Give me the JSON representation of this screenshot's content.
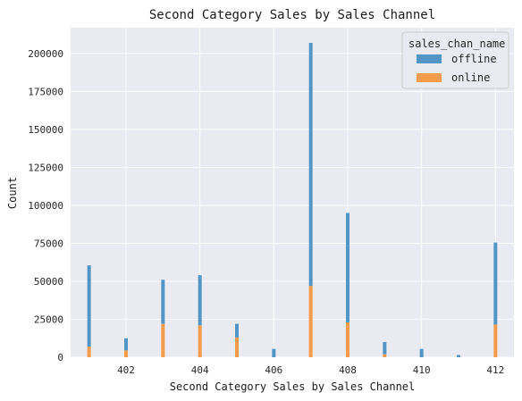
{
  "chart_data": {
    "type": "bar",
    "stacked": true,
    "title": "Second Category Sales by Sales Channel",
    "xlabel": "Second Category Sales by Sales Channel",
    "ylabel": "Count",
    "x": [
      401,
      402,
      403,
      404,
      405,
      406,
      407,
      408,
      409,
      410,
      411,
      412
    ],
    "series": [
      {
        "name": "online",
        "values": [
          7000,
          4500,
          22000,
          21000,
          13000,
          0,
          47000,
          23000,
          2000,
          0,
          0,
          21500
        ]
      },
      {
        "name": "offline",
        "values": [
          53500,
          8000,
          29000,
          33000,
          9000,
          5500,
          160000,
          72000,
          8000,
          5500,
          1500,
          54000
        ]
      }
    ],
    "colors": {
      "offline": "#5196c7",
      "online": "#f59c4c",
      "plot_bg": "#eaeaf2",
      "grid": "#ffffff"
    },
    "xlim": [
      400.5,
      412.5
    ],
    "ylim": [
      0,
      217000
    ],
    "x_ticks": [
      402,
      404,
      406,
      408,
      410,
      412
    ],
    "y_ticks": [
      0,
      25000,
      50000,
      75000,
      100000,
      125000,
      150000,
      175000,
      200000
    ],
    "grid": true,
    "legend": {
      "title": "sales_chan_name",
      "entries": [
        "offline",
        "online"
      ],
      "placement": "top-right"
    }
  }
}
